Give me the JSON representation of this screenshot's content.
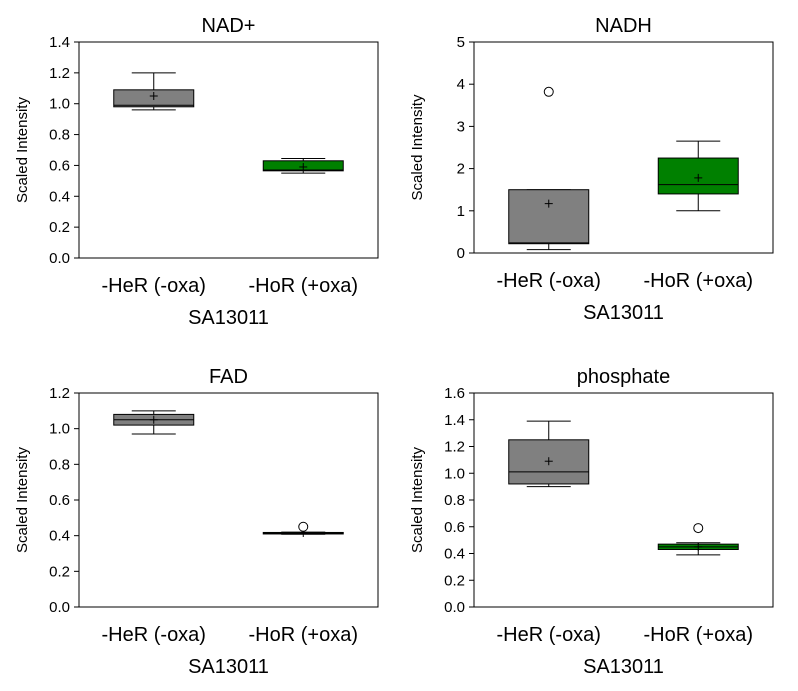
{
  "chart_data": [
    {
      "type": "box",
      "title": "NAD+",
      "ylabel": "Scaled Intensity",
      "xlabel": "SA13011",
      "ylim": [
        0,
        1.4
      ],
      "yticks": [
        "0.0",
        "0.2",
        "0.4",
        "0.6",
        "0.8",
        "1.0",
        "1.2",
        "1.4"
      ],
      "categories": [
        "-HeR (-oxa)",
        "-HoR (+oxa)"
      ],
      "boxes": [
        {
          "whisker_low": 0.96,
          "q1": 0.98,
          "median": 0.99,
          "q3": 1.09,
          "whisker_high": 1.2,
          "mean": 1.05,
          "outliers": [],
          "color": "#808080"
        },
        {
          "whisker_low": 0.55,
          "q1": 0.565,
          "median": 0.57,
          "q3": 0.63,
          "whisker_high": 0.645,
          "mean": 0.59,
          "outliers": [],
          "color": "#008000"
        }
      ]
    },
    {
      "type": "box",
      "title": "NADH",
      "ylabel": "Scaled Intensity",
      "xlabel": "SA13011",
      "ylim": [
        0,
        5
      ],
      "yticks": [
        "0",
        "1",
        "2",
        "3",
        "4",
        "5"
      ],
      "categories": [
        "-HeR (-oxa)",
        "-HoR (+oxa)"
      ],
      "boxes": [
        {
          "whisker_low": 0.08,
          "q1": 0.22,
          "median": 0.24,
          "q3": 1.5,
          "whisker_high": 1.5,
          "mean": 1.17,
          "outliers": [
            3.82
          ],
          "color": "#808080"
        },
        {
          "whisker_low": 1.0,
          "q1": 1.4,
          "median": 1.62,
          "q3": 2.25,
          "whisker_high": 2.65,
          "mean": 1.78,
          "outliers": [],
          "color": "#008000"
        }
      ]
    },
    {
      "type": "box",
      "title": "FAD",
      "ylabel": "Scaled Intensity",
      "xlabel": "SA13011",
      "ylim": [
        0,
        1.2
      ],
      "yticks": [
        "0.0",
        "0.2",
        "0.4",
        "0.6",
        "0.8",
        "1.0",
        "1.2"
      ],
      "categories": [
        "-HeR (-oxa)",
        "-HoR (+oxa)"
      ],
      "boxes": [
        {
          "whisker_low": 0.97,
          "q1": 1.02,
          "median": 1.05,
          "q3": 1.08,
          "whisker_high": 1.1,
          "mean": 1.05,
          "outliers": [],
          "color": "#808080"
        },
        {
          "whisker_low": 0.408,
          "q1": 0.41,
          "median": 0.413,
          "q3": 0.418,
          "whisker_high": 0.42,
          "mean": 0.415,
          "outliers": [
            0.45
          ],
          "color": "#008000"
        }
      ]
    },
    {
      "type": "box",
      "title": "phosphate",
      "ylabel": "Scaled Intensity",
      "xlabel": "SA13011",
      "ylim": [
        0,
        1.6
      ],
      "yticks": [
        "0.0",
        "0.2",
        "0.4",
        "0.6",
        "0.8",
        "1.0",
        "1.2",
        "1.4",
        "1.6"
      ],
      "categories": [
        "-HeR (-oxa)",
        "-HoR (+oxa)"
      ],
      "boxes": [
        {
          "whisker_low": 0.9,
          "q1": 0.92,
          "median": 1.01,
          "q3": 1.25,
          "whisker_high": 1.39,
          "mean": 1.09,
          "outliers": [],
          "color": "#808080"
        },
        {
          "whisker_low": 0.39,
          "q1": 0.43,
          "median": 0.45,
          "q3": 0.47,
          "whisker_high": 0.48,
          "mean": 0.45,
          "outliers": [
            0.59
          ],
          "color": "#008000"
        }
      ]
    }
  ]
}
